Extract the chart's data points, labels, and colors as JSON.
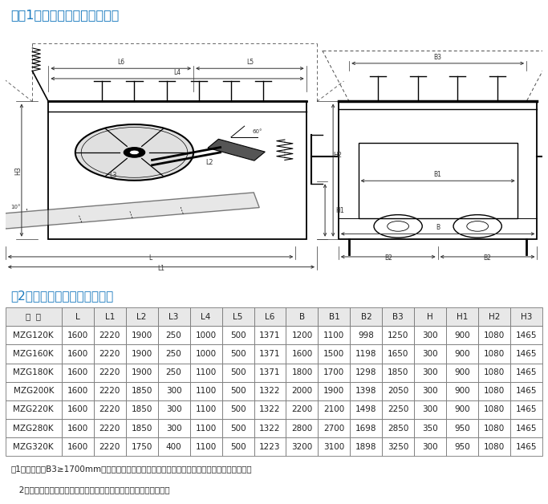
{
  "title1": "四（1）、宽槽体给料机安装图",
  "title2": "（2）、宽槽体给料机主要尺寸",
  "title_color": "#1a7abf",
  "bg_color": "#ffffff",
  "table_headers": [
    "型  号",
    "L",
    "L1",
    "L2",
    "L3",
    "L4",
    "L5",
    "L6",
    "B",
    "B1",
    "B2",
    "B3",
    "H",
    "H1",
    "H2",
    "H3"
  ],
  "table_data": [
    [
      "MZG120K",
      "1600",
      "2220",
      "1900",
      "250",
      "1000",
      "500",
      "1371",
      "1200",
      "1100",
      "998",
      "1250",
      "300",
      "900",
      "1080",
      "1465"
    ],
    [
      "MZG160K",
      "1600",
      "2220",
      "1900",
      "250",
      "1000",
      "500",
      "1371",
      "1600",
      "1500",
      "1198",
      "1650",
      "300",
      "900",
      "1080",
      "1465"
    ],
    [
      "MZG180K",
      "1600",
      "2220",
      "1900",
      "250",
      "1100",
      "500",
      "1371",
      "1800",
      "1700",
      "1298",
      "1850",
      "300",
      "900",
      "1080",
      "1465"
    ],
    [
      "MZG200K",
      "1600",
      "2220",
      "1850",
      "300",
      "1100",
      "500",
      "1322",
      "2000",
      "1900",
      "1398",
      "2050",
      "300",
      "900",
      "1080",
      "1465"
    ],
    [
      "MZG220K",
      "1600",
      "2220",
      "1850",
      "300",
      "1100",
      "500",
      "1322",
      "2200",
      "2100",
      "1498",
      "2250",
      "300",
      "900",
      "1080",
      "1465"
    ],
    [
      "MZG280K",
      "1600",
      "2220",
      "1850",
      "300",
      "1100",
      "500",
      "1322",
      "2800",
      "2700",
      "1698",
      "2850",
      "350",
      "950",
      "1080",
      "1465"
    ],
    [
      "MZG320K",
      "1600",
      "2220",
      "1750",
      "400",
      "1100",
      "500",
      "1223",
      "3200",
      "3100",
      "1898",
      "3250",
      "300",
      "950",
      "1080",
      "1465"
    ]
  ],
  "note1": "注1：溜槽闸门B3≥1700mm的，为双手轮闸门。其它为单手轮闸门，如用户无要求为左式安装。",
  "note2": "   2：我公司可根据用户的不同需求，定制各种要求和规格的给料机。",
  "text_color": "#222222"
}
